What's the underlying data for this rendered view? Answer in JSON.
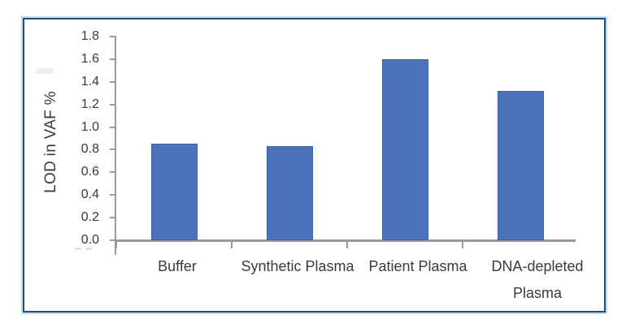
{
  "figure": {
    "frame_border_color": "#1d507e",
    "frame_halo_color": "#a0bad3",
    "background_color": "#ffffff",
    "axis_line_color": "#9a9a9a",
    "text_color": "#3b3b3b"
  },
  "chart_data": {
    "type": "bar",
    "title": "",
    "xlabel": "",
    "ylabel": "LOD in VAF %",
    "categories": [
      "Buffer",
      "Synthetic Plasma",
      "Patient Plasma",
      "DNA-depleted Plasma"
    ],
    "values": [
      0.85,
      0.83,
      1.6,
      1.32
    ],
    "ylim": [
      0.0,
      1.8
    ],
    "ytick_step": 0.2,
    "ytick_labels": [
      "1.8",
      "1.6",
      "1.4",
      "1.2",
      "1.0",
      "0.8",
      "0.6",
      "0.4",
      "0.2",
      "0.0"
    ],
    "bar_color": "#4a73b9",
    "bar_border_color": "#3e64a6",
    "grid": false,
    "legend": null
  }
}
